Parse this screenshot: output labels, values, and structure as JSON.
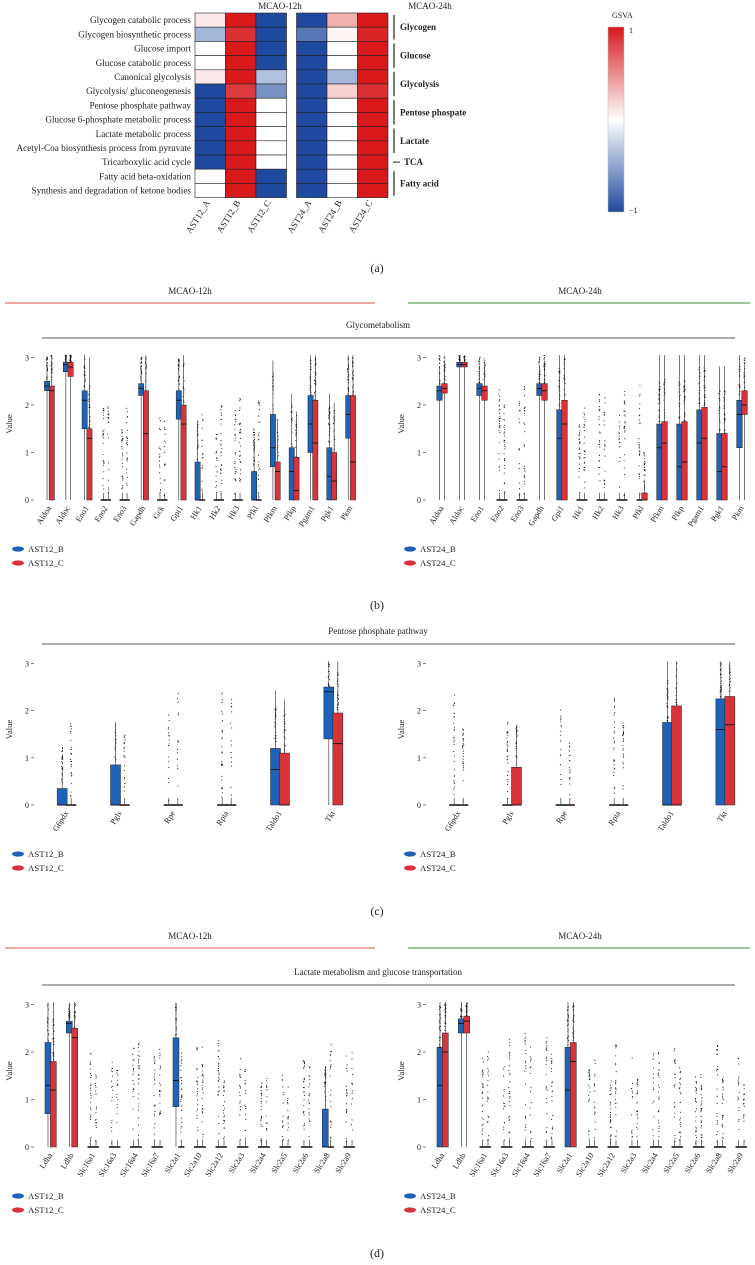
{
  "heatmap": {
    "col_groups": [
      "MCAO-12h",
      "MCAO-24h"
    ],
    "rows": [
      "Glycogen catabolic process",
      "Glycogen biosynthetic process",
      "Glucose import",
      "Glucose catabolic process",
      "Canonical glycolysis",
      "Glycolysis/ gluconeogenesis",
      "Pentose phosphate pathway",
      "Glucose 6-phosphate metabolic process",
      "Lactate metabolic process",
      "Acetyl-Coa biosynthesis process from pyruvate",
      "Tricarboxylic acid cycle",
      "Fatty acid beta-oxidation",
      "Synthesis and degradation of ketone bodies"
    ],
    "columns": [
      "AST12_A",
      "AST12_B",
      "AST12_C",
      "AST24_A",
      "AST24_B",
      "AST24_C"
    ],
    "values": [
      [
        0.1,
        1,
        -1,
        -1,
        0.35,
        1
      ],
      [
        -0.4,
        0.9,
        -1,
        -0.75,
        0.05,
        0.95
      ],
      [
        0,
        1,
        -1,
        -1,
        0,
        1
      ],
      [
        0,
        1,
        -1,
        -1,
        0,
        1
      ],
      [
        0.1,
        1,
        -0.35,
        -1,
        -0.4,
        1
      ],
      [
        -1,
        0.85,
        -0.6,
        -1,
        0.2,
        0.9
      ],
      [
        -1,
        1,
        0,
        -1,
        0,
        1
      ],
      [
        -1,
        1,
        0,
        -1,
        0,
        1
      ],
      [
        -1,
        1,
        0,
        -1,
        0,
        1
      ],
      [
        -1,
        1,
        0,
        -1,
        0,
        1
      ],
      [
        -1,
        1,
        0,
        -1,
        0,
        1
      ],
      [
        0,
        1,
        -1,
        -1,
        0,
        1
      ],
      [
        0,
        1,
        -1,
        -1,
        0,
        1
      ]
    ],
    "row_groups": [
      {
        "label": "Glycogen",
        "start": 0,
        "end": 1
      },
      {
        "label": "Glucose",
        "start": 2,
        "end": 3
      },
      {
        "label": "Glycolysis",
        "start": 4,
        "end": 5
      },
      {
        "label": "Pentose phospate",
        "start": 6,
        "end": 7
      },
      {
        "label": "Lactate",
        "start": 8,
        "end": 9
      },
      {
        "label": "TCA",
        "start": 10,
        "end": 10
      },
      {
        "label": "Fatty acid",
        "start": 11,
        "end": 12
      }
    ],
    "legend_title": "GSVA",
    "legend_max": "1",
    "legend_min": "−1",
    "colors": {
      "low": "#1f4aa0",
      "mid": "#ffffff",
      "high": "#d7191c"
    }
  },
  "panel_labels": [
    "(a)",
    "(b)",
    "(c)",
    "(d)"
  ],
  "timepoints": {
    "h12": "MCAO-12h",
    "h24": "MCAO-24h",
    "h12_color": "#d9534f",
    "h24_color": "#3c8d3c"
  },
  "section_titles": {
    "b": "Glycometabolism",
    "c": "Pentose phosphate pathway",
    "d": "Lactate metabolism and glucose transportation"
  },
  "ylabel": "Value",
  "yticks": [
    "0",
    "1",
    "2",
    "3"
  ],
  "legend_left": [
    "AST12_B",
    "AST12_C"
  ],
  "legend_right": [
    "AST24_B",
    "AST24_C"
  ],
  "series_colors": {
    "B": "#1e63b8",
    "C": "#d9333a"
  },
  "chart_data": [
    {
      "type": "box",
      "title": "Glycometabolism",
      "timepoint": "MCAO-12h",
      "ylabel": "Value",
      "ylim": [
        0,
        3
      ],
      "categories": [
        "Aldoa",
        "Aldoc",
        "Eno1",
        "Eno2",
        "Eno3",
        "Gapdh",
        "Gck",
        "Gpi1",
        "Hk1",
        "Hk2",
        "Hk3",
        "Pfkl",
        "Pfkm",
        "Pfkp",
        "Pgam1",
        "Pgk1",
        "Pkm"
      ],
      "series": [
        {
          "name": "AST12_B",
          "boxes": [
            [
              2.3,
              2.4,
              2.5
            ],
            [
              2.7,
              2.85,
              2.9
            ],
            [
              1.5,
              2.1,
              2.3
            ],
            [
              0,
              0,
              0
            ],
            [
              0,
              0,
              0
            ],
            [
              2.2,
              2.35,
              2.45
            ],
            [
              0,
              0,
              0
            ],
            [
              1.7,
              2.1,
              2.3
            ],
            [
              0,
              0,
              0.8
            ],
            [
              0,
              0,
              0
            ],
            [
              0,
              0,
              0
            ],
            [
              0,
              0,
              0.6
            ],
            [
              0.7,
              1.1,
              1.8
            ],
            [
              0,
              0.6,
              1.1
            ],
            [
              1.0,
              1.6,
              2.2
            ],
            [
              0,
              0.5,
              1.1
            ],
            [
              1.3,
              1.8,
              2.2
            ]
          ]
        },
        {
          "name": "AST12_C",
          "boxes": [
            [
              0,
              2.3,
              2.4
            ],
            [
              2.6,
              2.8,
              2.9
            ],
            [
              0,
              1.3,
              1.5
            ],
            [
              0,
              0,
              0
            ],
            [
              0,
              0,
              0
            ],
            [
              0,
              1.4,
              2.3
            ],
            [
              0,
              0,
              0
            ],
            [
              0,
              1.6,
              2.0
            ],
            [
              0,
              0,
              0
            ],
            [
              0,
              0,
              0
            ],
            [
              0,
              0,
              0
            ],
            [
              0,
              0,
              0
            ],
            [
              0,
              0.6,
              0.8
            ],
            [
              0,
              0.2,
              0.9
            ],
            [
              0,
              1.2,
              2.1
            ],
            [
              0,
              0.4,
              1.0
            ],
            [
              0,
              0.8,
              2.2
            ]
          ]
        }
      ]
    },
    {
      "type": "box",
      "title": "Glycometabolism",
      "timepoint": "MCAO-24h",
      "ylabel": "Value",
      "ylim": [
        0,
        3
      ],
      "categories": [
        "Aldoa",
        "Aldoc",
        "Eno1",
        "Eno2",
        "Eno3",
        "Gapdh",
        "Gpi1",
        "Hk1",
        "Hk2",
        "Hk3",
        "Pfkl",
        "Pfkm",
        "Pfkp",
        "Pgam1",
        "Pgk1",
        "Pkm"
      ],
      "series": [
        {
          "name": "AST24_B",
          "boxes": [
            [
              2.1,
              2.3,
              2.4
            ],
            [
              2.8,
              2.85,
              2.9
            ],
            [
              2.2,
              2.35,
              2.45
            ],
            [
              0,
              0,
              0
            ],
            [
              0,
              0,
              0
            ],
            [
              2.2,
              2.35,
              2.45
            ],
            [
              0,
              1.3,
              1.9
            ],
            [
              0,
              0,
              0
            ],
            [
              0,
              0,
              0
            ],
            [
              0,
              0,
              0
            ],
            [
              0,
              0,
              0
            ],
            [
              0,
              1.1,
              1.6
            ],
            [
              0,
              0.7,
              1.6
            ],
            [
              0,
              1.2,
              1.9
            ],
            [
              0,
              0.6,
              1.4
            ],
            [
              1.1,
              1.8,
              2.1
            ]
          ]
        },
        {
          "name": "AST24_C",
          "boxes": [
            [
              2.25,
              2.35,
              2.45
            ],
            [
              2.8,
              2.85,
              2.9
            ],
            [
              2.1,
              2.3,
              2.4
            ],
            [
              0,
              0,
              0
            ],
            [
              0,
              0,
              0
            ],
            [
              2.1,
              2.3,
              2.45
            ],
            [
              0,
              1.6,
              2.1
            ],
            [
              0,
              0,
              0
            ],
            [
              0,
              0,
              0
            ],
            [
              0,
              0,
              0
            ],
            [
              0,
              0,
              0.15
            ],
            [
              0,
              1.2,
              1.65
            ],
            [
              0,
              0.8,
              1.65
            ],
            [
              0,
              1.3,
              1.95
            ],
            [
              0,
              0.7,
              1.4
            ],
            [
              1.8,
              2.0,
              2.3
            ]
          ]
        }
      ]
    },
    {
      "type": "box",
      "title": "Pentose phosphate pathway",
      "timepoint": "MCAO-12h",
      "ylabel": "Value",
      "ylim": [
        0,
        3
      ],
      "categories": [
        "G6pdx",
        "Pgls",
        "Rpe",
        "Rpia",
        "Taldo1",
        "Tkt"
      ],
      "series": [
        {
          "name": "AST12_B",
          "boxes": [
            [
              0,
              0,
              0.35
            ],
            [
              0,
              0,
              0.85
            ],
            [
              0,
              0,
              0
            ],
            [
              0,
              0,
              0
            ],
            [
              0,
              0.75,
              1.2
            ],
            [
              1.4,
              2.4,
              2.5
            ]
          ]
        },
        {
          "name": "AST12_C",
          "boxes": [
            [
              0,
              0,
              0
            ],
            [
              0,
              0,
              0
            ],
            [
              0,
              0,
              0
            ],
            [
              0,
              0,
              0
            ],
            [
              0,
              0,
              1.1
            ],
            [
              0,
              1.3,
              1.95
            ]
          ]
        }
      ]
    },
    {
      "type": "box",
      "title": "Pentose phosphate pathway",
      "timepoint": "MCAO-24h",
      "ylabel": "Value",
      "ylim": [
        0,
        3
      ],
      "categories": [
        "G6pdx",
        "Pgls",
        "Rpe",
        "Rpia",
        "Taldo1",
        "Tkt"
      ],
      "series": [
        {
          "name": "AST24_B",
          "boxes": [
            [
              0,
              0,
              0
            ],
            [
              0,
              0,
              0
            ],
            [
              0,
              0,
              0
            ],
            [
              0,
              0,
              0
            ],
            [
              0,
              0,
              1.75
            ],
            [
              0,
              1.6,
              2.25
            ]
          ]
        },
        {
          "name": "AST24_C",
          "boxes": [
            [
              0,
              0,
              0
            ],
            [
              0,
              0,
              0.8
            ],
            [
              0,
              0,
              0
            ],
            [
              0,
              0,
              0
            ],
            [
              0,
              0,
              2.1
            ],
            [
              0,
              1.7,
              2.3
            ]
          ]
        }
      ]
    },
    {
      "type": "box",
      "title": "Lactate metabolism and glucose transportation",
      "timepoint": "MCAO-12h",
      "ylabel": "Value",
      "ylim": [
        0,
        3
      ],
      "categories": [
        "Ldha",
        "Ldhb",
        "Slc16a1",
        "Slc16a3",
        "Slc16a4",
        "Slc16a7",
        "Slc2a1",
        "Slc2a10",
        "Slc2a12",
        "Slc2a3",
        "Slc2a4",
        "Slc2a5",
        "Slc2a6",
        "Slc2a8",
        "Slc2a9"
      ],
      "series": [
        {
          "name": "AST12_B",
          "boxes": [
            [
              0.7,
              1.3,
              2.2
            ],
            [
              2.4,
              2.6,
              2.65
            ],
            [
              0,
              0,
              0
            ],
            [
              0,
              0,
              0
            ],
            [
              0,
              0,
              0
            ],
            [
              0,
              0,
              0
            ],
            [
              0.85,
              1.4,
              2.3
            ],
            [
              0,
              0,
              0
            ],
            [
              0,
              0,
              0
            ],
            [
              0,
              0,
              0
            ],
            [
              0,
              0,
              0
            ],
            [
              0,
              0,
              0
            ],
            [
              0,
              0,
              0
            ],
            [
              0,
              0,
              0.8
            ],
            [
              0,
              0,
              0
            ]
          ]
        },
        {
          "name": "AST12_C",
          "boxes": [
            [
              0,
              1.2,
              1.8
            ],
            [
              0,
              2.3,
              2.5
            ],
            [
              0,
              0,
              0
            ],
            [
              0,
              0,
              0
            ],
            [
              0,
              0,
              0
            ],
            [
              0,
              0,
              0
            ],
            [
              0,
              0,
              0
            ],
            [
              0,
              0,
              0
            ],
            [
              0,
              0,
              0
            ],
            [
              0,
              0,
              0
            ],
            [
              0,
              0,
              0
            ],
            [
              0,
              0,
              0
            ],
            [
              0,
              0,
              0
            ],
            [
              0,
              0,
              0
            ],
            [
              0,
              0,
              0
            ]
          ]
        }
      ]
    },
    {
      "type": "box",
      "title": "Lactate metabolism and glucose transportation",
      "timepoint": "MCAO-24h",
      "ylabel": "Value",
      "ylim": [
        0,
        3
      ],
      "categories": [
        "Ldha",
        "Ldhb",
        "Slc16a1",
        "Slc16a3",
        "Slc16a4",
        "Slc16a7",
        "Slc2a1",
        "Slc2a10",
        "Slc2a12",
        "Slc2a3",
        "Slc2a4",
        "Slc2a5",
        "Slc2a6",
        "Slc2a8",
        "Slc2a9"
      ],
      "series": [
        {
          "name": "AST24_B",
          "boxes": [
            [
              0,
              1.3,
              2.1
            ],
            [
              2.4,
              2.6,
              2.7
            ],
            [
              0,
              0,
              0
            ],
            [
              0,
              0,
              0
            ],
            [
              0,
              0,
              0
            ],
            [
              0,
              0,
              0
            ],
            [
              0,
              1.2,
              2.1
            ],
            [
              0,
              0,
              0
            ],
            [
              0,
              0,
              0
            ],
            [
              0,
              0,
              0
            ],
            [
              0,
              0,
              0
            ],
            [
              0,
              0,
              0
            ],
            [
              0,
              0,
              0
            ],
            [
              0,
              0,
              0
            ],
            [
              0,
              0,
              0
            ]
          ]
        },
        {
          "name": "AST24_C",
          "boxes": [
            [
              0,
              2.0,
              2.4
            ],
            [
              2.4,
              2.65,
              2.75
            ],
            [
              0,
              0,
              0
            ],
            [
              0,
              0,
              0
            ],
            [
              0,
              0,
              0
            ],
            [
              0,
              0,
              0
            ],
            [
              0,
              1.8,
              2.2
            ],
            [
              0,
              0,
              0
            ],
            [
              0,
              0,
              0
            ],
            [
              0,
              0,
              0
            ],
            [
              0,
              0,
              0
            ],
            [
              0,
              0,
              0
            ],
            [
              0,
              0,
              0
            ],
            [
              0,
              0,
              0
            ],
            [
              0,
              0,
              0
            ]
          ]
        }
      ]
    }
  ]
}
